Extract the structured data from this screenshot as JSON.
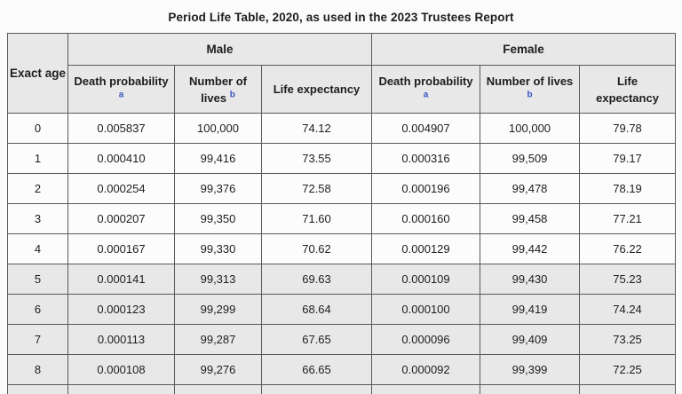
{
  "title": "Period Life Table, 2020, as used in the 2023 Trustees Report",
  "colors": {
    "header_bg": "#e8e8e8",
    "stripe_bg": "#e8e8e8",
    "row_bg": "#fcfcfc",
    "border": "#5a5a5a",
    "footnote_link": "#3a56c4",
    "text": "#1d1d1f",
    "page_bg": "#fbfbfb"
  },
  "table": {
    "corner_header": "Exact age",
    "groups": {
      "male": "Male",
      "female": "Female"
    },
    "sub_headers": [
      {
        "label": "Death probability",
        "superscript": "a"
      },
      {
        "label": "Number of lives",
        "superscript": "b"
      },
      {
        "label": "Life expectancy",
        "superscript": ""
      }
    ],
    "rows": [
      {
        "age": "0",
        "male": {
          "death_probability": "0.005837",
          "number_of_lives": "100,000",
          "life_expectancy": "74.12"
        },
        "female": {
          "death_probability": "0.004907",
          "number_of_lives": "100,000",
          "life_expectancy": "79.78"
        }
      },
      {
        "age": "1",
        "male": {
          "death_probability": "0.000410",
          "number_of_lives": "99,416",
          "life_expectancy": "73.55"
        },
        "female": {
          "death_probability": "0.000316",
          "number_of_lives": "99,509",
          "life_expectancy": "79.17"
        }
      },
      {
        "age": "2",
        "male": {
          "death_probability": "0.000254",
          "number_of_lives": "99,376",
          "life_expectancy": "72.58"
        },
        "female": {
          "death_probability": "0.000196",
          "number_of_lives": "99,478",
          "life_expectancy": "78.19"
        }
      },
      {
        "age": "3",
        "male": {
          "death_probability": "0.000207",
          "number_of_lives": "99,350",
          "life_expectancy": "71.60"
        },
        "female": {
          "death_probability": "0.000160",
          "number_of_lives": "99,458",
          "life_expectancy": "77.21"
        }
      },
      {
        "age": "4",
        "male": {
          "death_probability": "0.000167",
          "number_of_lives": "99,330",
          "life_expectancy": "70.62"
        },
        "female": {
          "death_probability": "0.000129",
          "number_of_lives": "99,442",
          "life_expectancy": "76.22"
        }
      },
      {
        "age": "5",
        "male": {
          "death_probability": "0.000141",
          "number_of_lives": "99,313",
          "life_expectancy": "69.63"
        },
        "female": {
          "death_probability": "0.000109",
          "number_of_lives": "99,430",
          "life_expectancy": "75.23"
        }
      },
      {
        "age": "6",
        "male": {
          "death_probability": "0.000123",
          "number_of_lives": "99,299",
          "life_expectancy": "68.64"
        },
        "female": {
          "death_probability": "0.000100",
          "number_of_lives": "99,419",
          "life_expectancy": "74.24"
        }
      },
      {
        "age": "7",
        "male": {
          "death_probability": "0.000113",
          "number_of_lives": "99,287",
          "life_expectancy": "67.65"
        },
        "female": {
          "death_probability": "0.000096",
          "number_of_lives": "99,409",
          "life_expectancy": "73.25"
        }
      },
      {
        "age": "8",
        "male": {
          "death_probability": "0.000108",
          "number_of_lives": "99,276",
          "life_expectancy": "66.65"
        },
        "female": {
          "death_probability": "0.000092",
          "number_of_lives": "99,399",
          "life_expectancy": "72.25"
        }
      }
    ]
  }
}
